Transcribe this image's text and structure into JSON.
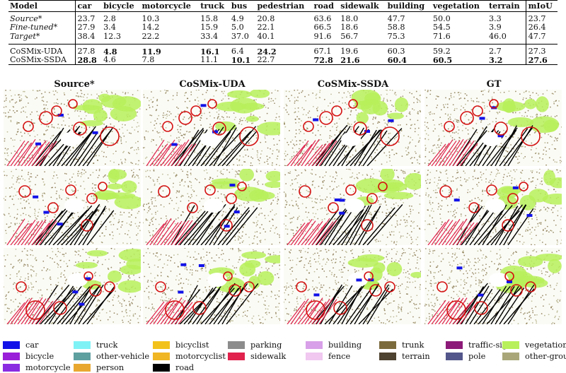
{
  "table": {
    "headers": [
      "Model",
      "car",
      "bicycle",
      "motorcycle",
      "truck",
      "bus",
      "pedestrian",
      "road",
      "sidewalk",
      "building",
      "vegetation",
      "terrain",
      "mIoU"
    ],
    "rows_group1": [
      {
        "model": "Source*",
        "italic": true,
        "values": [
          "23.7",
          "2.8",
          "10.3",
          "15.8",
          "4.9",
          "20.8",
          "63.6",
          "18.0",
          "47.7",
          "50.0",
          "3.3",
          "23.7"
        ],
        "bold": []
      },
      {
        "model": "Fine-tuned*",
        "italic": true,
        "values": [
          "27.9",
          "3.4",
          "14.2",
          "15.9",
          "5.0",
          "22.1",
          "66.5",
          "18.6",
          "58.8",
          "54.5",
          "3.9",
          "26.4"
        ],
        "bold": []
      },
      {
        "model": "Target*",
        "italic": true,
        "values": [
          "38.4",
          "12.3",
          "22.2",
          "33.4",
          "37.0",
          "40.1",
          "91.6",
          "56.7",
          "75.3",
          "71.6",
          "46.0",
          "47.7"
        ],
        "bold": []
      }
    ],
    "rows_group2": [
      {
        "model": "CoSMix-UDA",
        "italic": false,
        "values": [
          "27.8",
          "4.8",
          "11.9",
          "16.1",
          "6.4",
          "24.2",
          "67.1",
          "19.6",
          "60.3",
          "59.2",
          "2.7",
          "27.3"
        ],
        "bold": [
          1,
          2,
          3,
          5
        ]
      },
      {
        "model": "CoSMix-SSDA",
        "italic": false,
        "values": [
          "28.8",
          "4.6",
          "7.8",
          "11.1",
          "10.1",
          "22.7",
          "72.8",
          "21.6",
          "60.4",
          "60.5",
          "3.2",
          "27.6"
        ],
        "bold": [
          0,
          4,
          6,
          7,
          8,
          9,
          10,
          11
        ]
      }
    ]
  },
  "figure": {
    "columns": [
      "Source*",
      "CoSMix-UDA",
      "CoSMix-SSDA",
      "GT"
    ]
  },
  "legend": {
    "items": [
      {
        "label": "car",
        "color": "#1212e8"
      },
      {
        "label": "bicycle",
        "color": "#9a1fd8"
      },
      {
        "label": "motorcycle",
        "color": "#8a2be2"
      },
      {
        "label": "truck",
        "color": "#7ff2f6"
      },
      {
        "label": "other-vehicle",
        "color": "#5e9fa0"
      },
      {
        "label": "person",
        "color": "#e8a830"
      },
      {
        "label": "bicyclist",
        "color": "#f3c21a"
      },
      {
        "label": "motorcyclist",
        "color": "#f0b624"
      },
      {
        "label": "road",
        "color": "#000000"
      },
      {
        "label": "parking",
        "color": "#8c8c8c"
      },
      {
        "label": "sidewalk",
        "color": "#e0224c"
      },
      {
        "label": "building",
        "color": "#d8a0e8"
      },
      {
        "label": "fence",
        "color": "#f0c8f0"
      },
      {
        "label": "trunk",
        "color": "#7b6a3c"
      },
      {
        "label": "terrain",
        "color": "#4e4230"
      },
      {
        "label": "traffic-sign",
        "color": "#8c1a78"
      },
      {
        "label": "pole",
        "color": "#53568a"
      },
      {
        "label": "vegetation",
        "color": "#b7f05a"
      },
      {
        "label": "other-ground",
        "color": "#a9a77a"
      }
    ]
  }
}
